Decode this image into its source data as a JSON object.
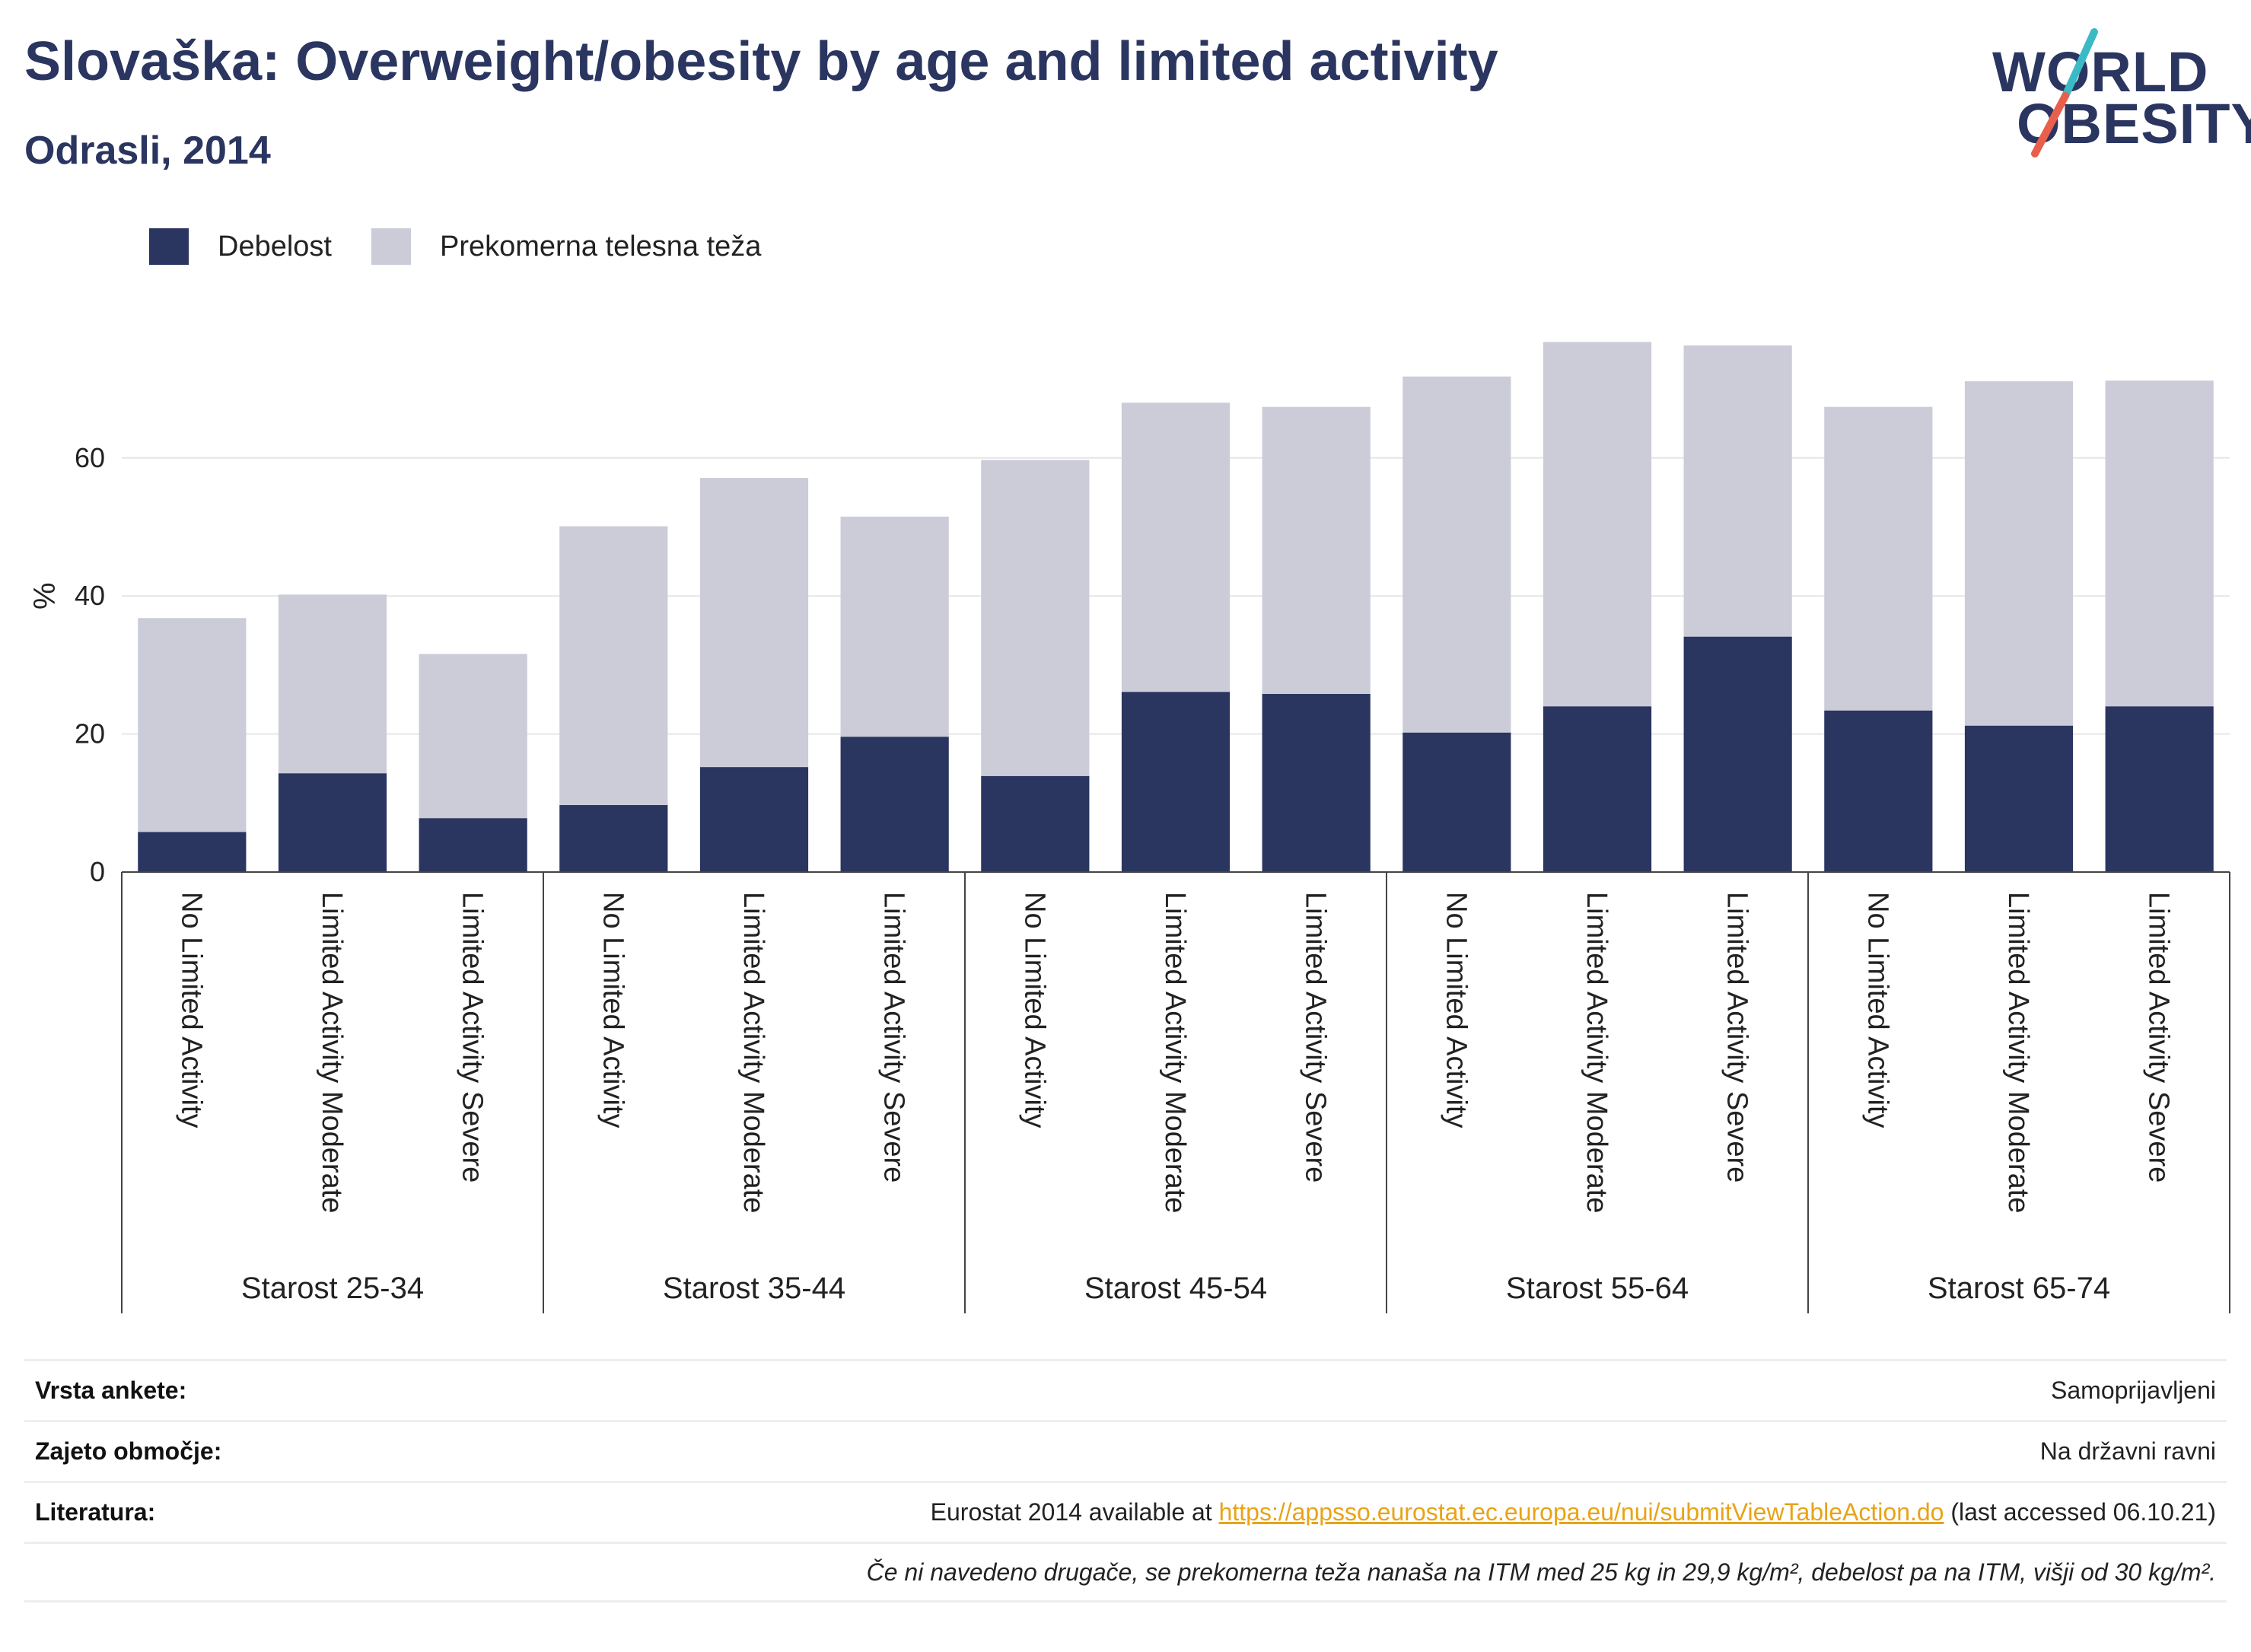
{
  "header": {
    "title": "Slovaška: Overweight/obesity by age and limited activity",
    "subtitle": "Odrasli, 2014"
  },
  "logo": {
    "line1": "WORLD",
    "line2": "OBESITY",
    "colors": {
      "text": "#2a3560",
      "slash_top": "#3bbac6",
      "slash_bottom": "#e8604c"
    }
  },
  "legend": [
    {
      "label": "Debelost",
      "color": "#2a3560"
    },
    {
      "label": "Prekomerna telesna teža",
      "color": "#cbccd8"
    }
  ],
  "chart_data": {
    "type": "bar",
    "stacked": true,
    "ylabel": "%",
    "xlabel": "",
    "ylim": [
      0,
      80
    ],
    "yticks": [
      0,
      20,
      40,
      60
    ],
    "grid": true,
    "legend_position": "top-left",
    "groups": [
      "Starost 25-34",
      "Starost 35-44",
      "Starost 45-54",
      "Starost 55-64",
      "Starost 65-74"
    ],
    "subcategories": [
      "No Limited Activity",
      "Limited Activity Moderate",
      "Limited Activity Severe"
    ],
    "series": [
      {
        "name": "Debelost",
        "color": "#2a3560",
        "values": [
          5.8,
          14.3,
          7.8,
          9.7,
          15.2,
          19.6,
          13.9,
          26.1,
          25.8,
          20.2,
          24.0,
          34.1,
          23.4,
          21.2,
          24.0
        ]
      },
      {
        "name": "Prekomerna telesna teža",
        "color": "#cbccd8",
        "values": [
          31.0,
          25.9,
          23.8,
          40.4,
          41.9,
          31.9,
          45.8,
          41.9,
          41.6,
          51.6,
          52.8,
          42.2,
          44.0,
          49.9,
          47.2
        ]
      }
    ]
  },
  "info": {
    "survey_key": "Vrsta ankete:",
    "survey_val": "Samoprijavljeni",
    "coverage_key": "Zajeto območje:",
    "coverage_val": "Na državni ravni",
    "ref_key": "Literatura:",
    "ref_prefix": "Eurostat 2014 available at ",
    "ref_link": "https://appsso.eurostat.ec.europa.eu/nui/submitViewTableAction.do",
    "ref_suffix": " (last accessed 06.10.21)",
    "note": "Če ni navedeno drugače, se prekomerna teža nanaša na ITM med 25 kg in 29,9 kg/m², debelost pa na ITM, višji od 30 kg/m²."
  }
}
